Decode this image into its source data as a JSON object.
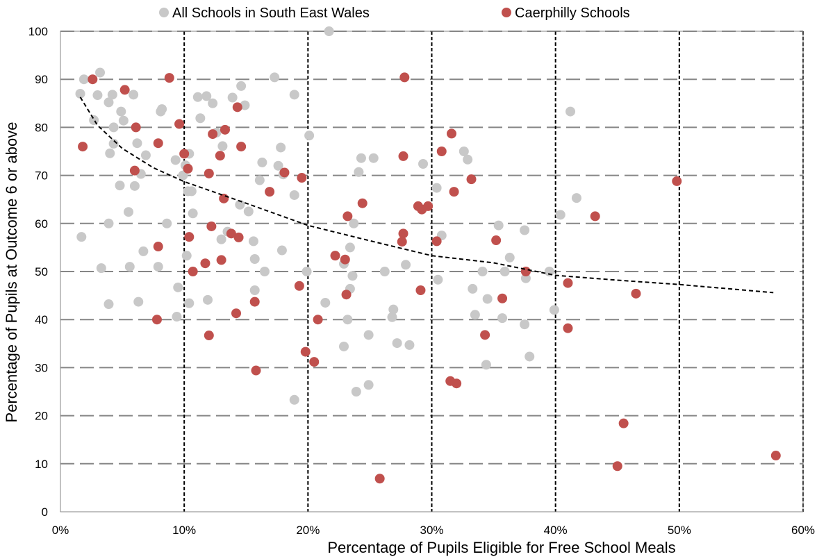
{
  "chart_data": {
    "type": "scatter",
    "title": "",
    "xlabel": "Percentage of Pupils Eligible for Free School Meals",
    "ylabel": "Percentage of Pupils at Outcome 6 or above",
    "xlim": [
      0,
      60
    ],
    "ylim": [
      0,
      100
    ],
    "x_ticks": [
      0,
      10,
      20,
      30,
      40,
      50,
      60
    ],
    "x_tick_labels": [
      "0%",
      "10%",
      "20%",
      "30%",
      "40%",
      "50%",
      "60%"
    ],
    "y_ticks": [
      0,
      10,
      20,
      30,
      40,
      50,
      60,
      70,
      80,
      90,
      100
    ],
    "y_tick_labels": [
      "0",
      "10",
      "20",
      "30",
      "40",
      "50",
      "60",
      "70",
      "80",
      "90",
      "100"
    ],
    "grid": {
      "horizontal": "dashed-gray",
      "vertical": "dashed-black"
    },
    "legend": "top-center",
    "series": [
      {
        "name": "All Schools in South East Wales",
        "color": "#c8c8c8",
        "points": [
          [
            1.6,
            87
          ],
          [
            1.9,
            90
          ],
          [
            2.7,
            81.5
          ],
          [
            3.0,
            86.7
          ],
          [
            3.2,
            91.4
          ],
          [
            3.9,
            85.2
          ],
          [
            4.3,
            80
          ],
          [
            4.2,
            86.8
          ],
          [
            4.3,
            76.6
          ],
          [
            4.9,
            83.3
          ],
          [
            5.1,
            81.4
          ],
          [
            4.0,
            74.6
          ],
          [
            5.9,
            86.8
          ],
          [
            6.2,
            76.7
          ],
          [
            6.9,
            74.2
          ],
          [
            6.5,
            70.3
          ],
          [
            6.0,
            67.8
          ],
          [
            4.8,
            67.9
          ],
          [
            5.5,
            62.4
          ],
          [
            3.9,
            60
          ],
          [
            1.7,
            57.2
          ],
          [
            3.3,
            50.7
          ],
          [
            5.6,
            51
          ],
          [
            6.7,
            54.2
          ],
          [
            7.9,
            51
          ],
          [
            6.3,
            43.7
          ],
          [
            3.9,
            43.2
          ],
          [
            8.1,
            83.3
          ],
          [
            8.2,
            83.8
          ],
          [
            9.3,
            73.2
          ],
          [
            9.9,
            70
          ],
          [
            10.3,
            66.7
          ],
          [
            10.6,
            66.7
          ],
          [
            10.4,
            74.5
          ],
          [
            10.1,
            72.1
          ],
          [
            10.7,
            62.1
          ],
          [
            8.6,
            60
          ],
          [
            10.2,
            53.3
          ],
          [
            9.5,
            46.7
          ],
          [
            9.4,
            40.6
          ],
          [
            10.4,
            43.4
          ],
          [
            11.1,
            86.3
          ],
          [
            11.3,
            81.9
          ],
          [
            11.8,
            86.5
          ],
          [
            12.3,
            85
          ],
          [
            12.6,
            78.9
          ],
          [
            13.1,
            76.1
          ],
          [
            13.5,
            58.3
          ],
          [
            13.0,
            56.7
          ],
          [
            11.9,
            44.1
          ],
          [
            13.9,
            86.2
          ],
          [
            14.6,
            88.6
          ],
          [
            14.9,
            84.6
          ],
          [
            14.5,
            63.9
          ],
          [
            15.2,
            62.5
          ],
          [
            15.6,
            56.3
          ],
          [
            15.7,
            52.6
          ],
          [
            15.7,
            46.1
          ],
          [
            16.1,
            69
          ],
          [
            16.3,
            72.7
          ],
          [
            16.5,
            50
          ],
          [
            17.3,
            90.4
          ],
          [
            17.6,
            72
          ],
          [
            17.8,
            75.8
          ],
          [
            18.0,
            70.2
          ],
          [
            17.9,
            54.4
          ],
          [
            18.9,
            86.8
          ],
          [
            18.9,
            65.9
          ],
          [
            19.9,
            50
          ],
          [
            20.1,
            78.3
          ],
          [
            18.9,
            23.3
          ],
          [
            21.7,
            100
          ],
          [
            21.4,
            43.5
          ],
          [
            22.9,
            51.6
          ],
          [
            22.9,
            34.4
          ],
          [
            23.2,
            40
          ],
          [
            23.4,
            46.4
          ],
          [
            23.6,
            49.1
          ],
          [
            23.4,
            55
          ],
          [
            23.7,
            60
          ],
          [
            24.1,
            70.7
          ],
          [
            24.3,
            73.6
          ],
          [
            25.3,
            73.6
          ],
          [
            24.9,
            36.8
          ],
          [
            24.9,
            26.4
          ],
          [
            23.9,
            25
          ],
          [
            26.2,
            50
          ],
          [
            26.9,
            42.1
          ],
          [
            26.8,
            40.5
          ],
          [
            27.2,
            35.1
          ],
          [
            27.9,
            51.4
          ],
          [
            28.2,
            34.7
          ],
          [
            29.3,
            72.4
          ],
          [
            30.4,
            67.4
          ],
          [
            30.5,
            48.3
          ],
          [
            30.8,
            57.5
          ],
          [
            32.6,
            75
          ],
          [
            32.9,
            73.3
          ],
          [
            33.3,
            46.4
          ],
          [
            33.5,
            41
          ],
          [
            34.1,
            50
          ],
          [
            34.5,
            44.3
          ],
          [
            34.4,
            30.6
          ],
          [
            35.4,
            59.6
          ],
          [
            35.7,
            40.3
          ],
          [
            35.9,
            50
          ],
          [
            36.3,
            52.9
          ],
          [
            37.5,
            58.6
          ],
          [
            37.6,
            48.6
          ],
          [
            37.5,
            39
          ],
          [
            37.9,
            32.3
          ],
          [
            39.5,
            50
          ],
          [
            39.9,
            42
          ],
          [
            40.4,
            61.8
          ],
          [
            41.2,
            83.3
          ],
          [
            41.7,
            65.3
          ]
        ]
      },
      {
        "name": "Caerphilly Schools",
        "color": "#c0504d",
        "points": [
          [
            1.8,
            76
          ],
          [
            2.6,
            90
          ],
          [
            5.2,
            87.8
          ],
          [
            6.1,
            80
          ],
          [
            6.0,
            71
          ],
          [
            7.9,
            76.7
          ],
          [
            8.8,
            90.3
          ],
          [
            9.6,
            80.7
          ],
          [
            10.0,
            74.5
          ],
          [
            10.3,
            71.4
          ],
          [
            12.0,
            70.4
          ],
          [
            12.3,
            78.6
          ],
          [
            12.9,
            74.1
          ],
          [
            13.3,
            79.5
          ],
          [
            14.3,
            84.2
          ],
          [
            14.6,
            76
          ],
          [
            10.4,
            57.2
          ],
          [
            10.7,
            50
          ],
          [
            11.7,
            51.7
          ],
          [
            12.2,
            59.4
          ],
          [
            13.0,
            52.4
          ],
          [
            13.2,
            65.2
          ],
          [
            13.8,
            57.9
          ],
          [
            14.4,
            57.1
          ],
          [
            7.9,
            55.2
          ],
          [
            7.8,
            40
          ],
          [
            12.0,
            36.7
          ],
          [
            14.2,
            41.3
          ],
          [
            15.7,
            43.7
          ],
          [
            15.8,
            29.4
          ],
          [
            16.9,
            66.6
          ],
          [
            18.1,
            70.6
          ],
          [
            19.5,
            69.5
          ],
          [
            19.3,
            47
          ],
          [
            19.8,
            33.3
          ],
          [
            20.5,
            31.2
          ],
          [
            20.8,
            40
          ],
          [
            22.2,
            53.3
          ],
          [
            23.0,
            52.5
          ],
          [
            23.2,
            61.5
          ],
          [
            23.1,
            45.2
          ],
          [
            24.4,
            64.2
          ],
          [
            25.8,
            6.9
          ],
          [
            27.6,
            56.2
          ],
          [
            27.7,
            57.9
          ],
          [
            27.7,
            74
          ],
          [
            27.8,
            90.4
          ],
          [
            28.9,
            63.6
          ],
          [
            29.2,
            62.9
          ],
          [
            29.7,
            63.6
          ],
          [
            29.1,
            46.1
          ],
          [
            30.4,
            56.3
          ],
          [
            30.8,
            75
          ],
          [
            31.6,
            78.7
          ],
          [
            31.8,
            66.6
          ],
          [
            31.5,
            27.2
          ],
          [
            32.0,
            26.7
          ],
          [
            33.2,
            69.2
          ],
          [
            34.3,
            36.8
          ],
          [
            35.2,
            56.5
          ],
          [
            35.7,
            44.4
          ],
          [
            37.6,
            50
          ],
          [
            41.0,
            47.6
          ],
          [
            41.0,
            38.2
          ],
          [
            43.2,
            61.5
          ],
          [
            45.0,
            9.5
          ],
          [
            45.5,
            18.4
          ],
          [
            46.5,
            45.4
          ],
          [
            49.8,
            68.8
          ],
          [
            57.8,
            11.7
          ]
        ]
      },
      {
        "name": "",
        "type": "trendline",
        "style": "dashed-black",
        "x_range": [
          1.6,
          57.6
        ],
        "points": [
          [
            1.6,
            86.3
          ],
          [
            3,
            80.4
          ],
          [
            5,
            75.6
          ],
          [
            7.5,
            71.6
          ],
          [
            10,
            68.7
          ],
          [
            15,
            64.2
          ],
          [
            20,
            59.6
          ],
          [
            25,
            56.4
          ],
          [
            30,
            53.3
          ],
          [
            35,
            51.8
          ],
          [
            40,
            49.2
          ],
          [
            45,
            48.2
          ],
          [
            50,
            47.3
          ],
          [
            57.6,
            45.6
          ]
        ]
      }
    ]
  }
}
